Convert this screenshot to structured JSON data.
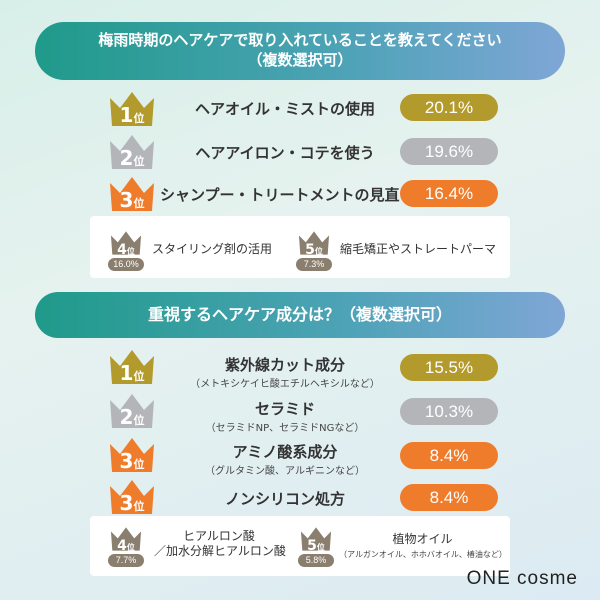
{
  "section1": {
    "title_line1": "梅雨時期のヘアケアで取り入れていることを教えてください",
    "title_line2": "（複数選択可）",
    "ranks": [
      {
        "num": "1",
        "unit": "位",
        "label": "ヘアオイル・ミストの使用",
        "percent": "20.1%",
        "tier": "gold"
      },
      {
        "num": "2",
        "unit": "位",
        "label": "ヘアアイロン・コテを使う",
        "percent": "19.6%",
        "tier": "silver"
      },
      {
        "num": "3",
        "unit": "位",
        "label": "シャンプー・トリートメントの見直し",
        "percent": "16.4%",
        "tier": "bronze"
      }
    ],
    "minor": [
      {
        "num": "4",
        "unit": "位",
        "label": "スタイリング剤の活用",
        "percent": "16.0%"
      },
      {
        "num": "5",
        "unit": "位",
        "label": "縮毛矯正やストレートパーマ",
        "percent": "7.3%"
      }
    ]
  },
  "section2": {
    "title": "重視するヘアケア成分は？（複数選択可）",
    "ranks": [
      {
        "num": "1",
        "unit": "位",
        "label": "紫外線カット成分",
        "sub": "（メトキシケイヒ酸エチルヘキシルなど）",
        "percent": "15.5%",
        "tier": "gold"
      },
      {
        "num": "2",
        "unit": "位",
        "label": "セラミド",
        "sub": "（セラミドNP、セラミドNGなど）",
        "percent": "10.3%",
        "tier": "silver"
      },
      {
        "num": "3",
        "unit": "位",
        "label": "アミノ酸系成分",
        "sub": "（グルタミン酸、アルギニンなど）",
        "percent": "8.4%",
        "tier": "bronze"
      },
      {
        "num": "3",
        "unit": "位",
        "label": "ノンシリコン処方",
        "sub": "",
        "percent": "8.4%",
        "tier": "bronze"
      }
    ],
    "minor": [
      {
        "num": "4",
        "unit": "位",
        "label_line1": "ヒアルロン酸",
        "label_line2": "／加水分解ヒアルロン酸",
        "percent": "7.7%"
      },
      {
        "num": "5",
        "unit": "位",
        "label_line1": "植物オイル",
        "sub": "（アルガンオイル、ホホバオイル、椿油など）",
        "percent": "5.8%"
      }
    ]
  },
  "colors": {
    "gold": "#b39a2c",
    "silver": "#b3b5b8",
    "bronze": "#ef7c2b",
    "minor": "#8a7e6e"
  },
  "logo": "ONE cosme"
}
